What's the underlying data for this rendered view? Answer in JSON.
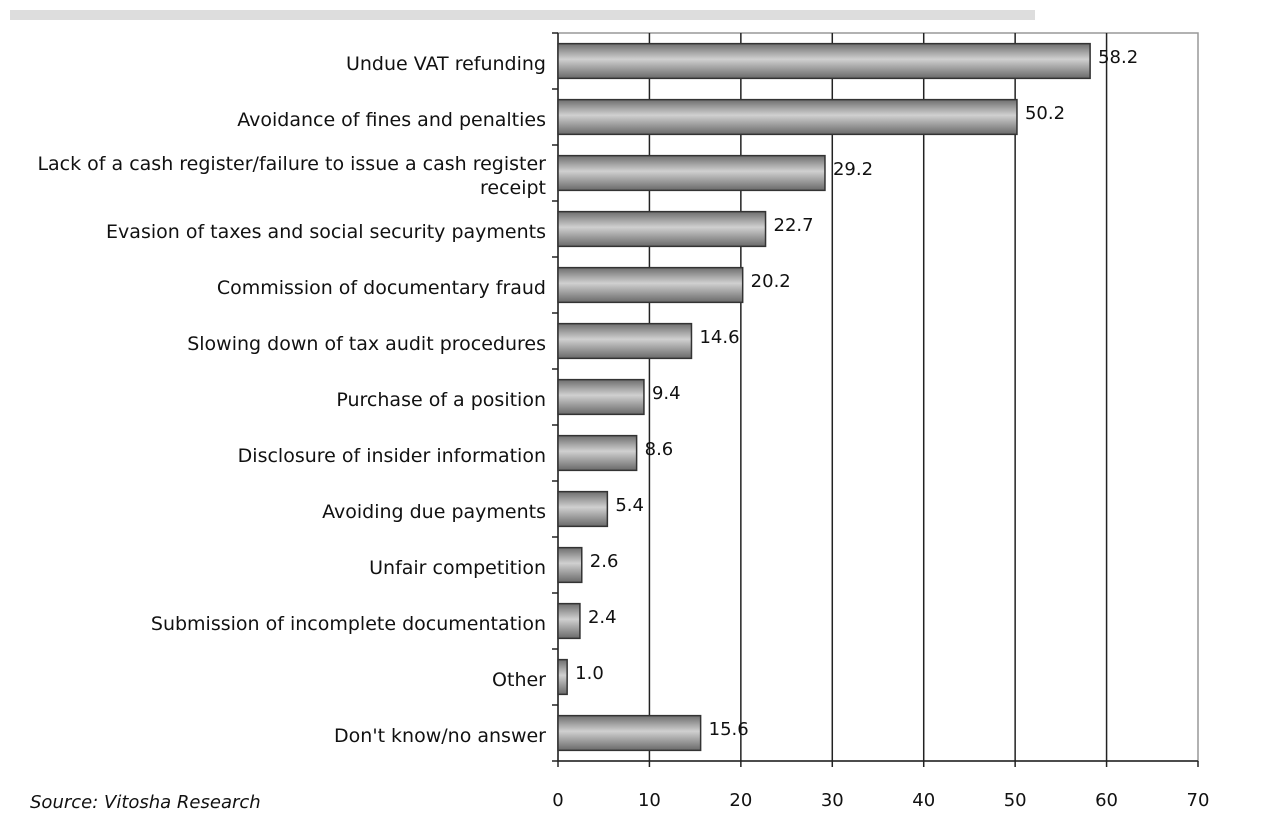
{
  "chart_data": {
    "type": "bar",
    "orientation": "horizontal",
    "categories": [
      "Undue VAT refunding",
      "Avoidance of fines and penalties",
      "Lack of a cash register/failure to issue a cash register receipt",
      "Evasion of taxes and social security payments",
      "Commission of documentary fraud",
      "Slowing down of tax audit procedures",
      "Purchase of a position",
      "Disclosure of insider information",
      "Avoiding due payments",
      "Unfair competition",
      "Submission of incomplete documentation",
      "Other",
      "Don't know/no answer"
    ],
    "values": [
      58.2,
      50.2,
      29.2,
      22.7,
      20.2,
      14.6,
      9.4,
      8.6,
      5.4,
      2.6,
      2.4,
      1.0,
      15.6
    ],
    "value_labels": [
      "58.2",
      "50.2",
      "29.2",
      "22.7",
      "20.2",
      "14.6",
      "9.4",
      "8.6",
      "5.4",
      "2.6",
      "2.4",
      "1.0",
      "15.6"
    ],
    "color": "#999999",
    "xlim": [
      0,
      70
    ],
    "xticks": [
      0,
      10,
      20,
      30,
      40,
      50,
      60,
      70
    ],
    "grid": true,
    "source": "Source:   Vitosha Research"
  }
}
